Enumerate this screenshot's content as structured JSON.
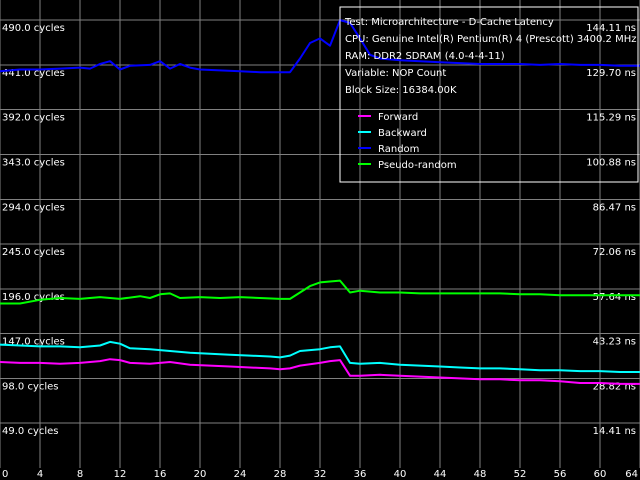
{
  "chart_data": {
    "type": "line",
    "x_ticks": [
      0,
      4,
      8,
      12,
      16,
      20,
      24,
      28,
      32,
      36,
      40,
      44,
      48,
      52,
      56,
      60,
      64
    ],
    "xlim": [
      0,
      64
    ],
    "ylim": [
      0,
      512
    ],
    "left_ticks": [
      {
        "value": 490,
        "label": "490.0 cycles"
      },
      {
        "value": 441,
        "label": "441.0 cycles"
      },
      {
        "value": 392,
        "label": "392.0 cycles"
      },
      {
        "value": 343,
        "label": "343.0 cycles"
      },
      {
        "value": 294,
        "label": "294.0 cycles"
      },
      {
        "value": 245,
        "label": "245.0 cycles"
      },
      {
        "value": 196,
        "label": "196.0 cycles"
      },
      {
        "value": 147,
        "label": "147.0 cycles"
      },
      {
        "value": 98,
        "label": "98.0 cycles"
      },
      {
        "value": 49,
        "label": "49.0 cycles"
      }
    ],
    "right_ticks": [
      {
        "value": 490,
        "label": "144.11 ns"
      },
      {
        "value": 441,
        "label": "129.70 ns"
      },
      {
        "value": 392,
        "label": "115.29 ns"
      },
      {
        "value": 343,
        "label": "100.88 ns"
      },
      {
        "value": 294,
        "label": "86.47 ns"
      },
      {
        "value": 245,
        "label": "72.06 ns"
      },
      {
        "value": 196,
        "label": "57.64 ns"
      },
      {
        "value": 147,
        "label": "43.23 ns"
      },
      {
        "value": 98,
        "label": "28.82 ns"
      },
      {
        "value": 49,
        "label": "14.41 ns"
      }
    ],
    "grid": true,
    "info": [
      "Test: Microarchitecture - D-Cache Latency",
      "CPU: Genuine Intel(R) Pentium(R) 4 (Prescott) 3400.2 MHz",
      "RAM: DDR2 SDRAM (4.0-4-4-11)",
      "Variable: NOP Count",
      "Block Size: 16384.00K"
    ],
    "legend_position": "top-right",
    "series": [
      {
        "name": "Forward",
        "color": "#ff00ff",
        "points": [
          [
            0,
            116
          ],
          [
            2,
            115
          ],
          [
            4,
            115
          ],
          [
            6,
            114
          ],
          [
            8,
            115
          ],
          [
            10,
            117
          ],
          [
            11,
            119
          ],
          [
            12,
            118
          ],
          [
            13,
            115
          ],
          [
            15,
            114
          ],
          [
            17,
            116
          ],
          [
            19,
            113
          ],
          [
            21,
            112
          ],
          [
            23,
            111
          ],
          [
            25,
            110
          ],
          [
            27,
            109
          ],
          [
            28,
            108
          ],
          [
            29,
            109
          ],
          [
            30,
            112
          ],
          [
            32,
            115
          ],
          [
            33,
            117
          ],
          [
            34,
            118
          ],
          [
            35,
            101
          ],
          [
            36,
            101
          ],
          [
            38,
            102
          ],
          [
            40,
            101
          ],
          [
            42,
            100
          ],
          [
            44,
            99
          ],
          [
            46,
            98
          ],
          [
            48,
            97
          ],
          [
            50,
            97
          ],
          [
            52,
            96
          ],
          [
            54,
            96
          ],
          [
            56,
            95
          ],
          [
            58,
            93
          ],
          [
            60,
            93
          ],
          [
            62,
            92
          ],
          [
            64,
            92
          ]
        ]
      },
      {
        "name": "Backward",
        "color": "#00ffff",
        "points": [
          [
            0,
            135
          ],
          [
            2,
            134
          ],
          [
            4,
            133
          ],
          [
            6,
            133
          ],
          [
            8,
            132
          ],
          [
            10,
            134
          ],
          [
            11,
            138
          ],
          [
            12,
            136
          ],
          [
            13,
            131
          ],
          [
            15,
            130
          ],
          [
            17,
            128
          ],
          [
            19,
            126
          ],
          [
            21,
            125
          ],
          [
            23,
            124
          ],
          [
            25,
            123
          ],
          [
            27,
            122
          ],
          [
            28,
            121
          ],
          [
            29,
            123
          ],
          [
            30,
            128
          ],
          [
            32,
            130
          ],
          [
            33,
            132
          ],
          [
            34,
            133
          ],
          [
            35,
            115
          ],
          [
            36,
            114
          ],
          [
            38,
            115
          ],
          [
            40,
            113
          ],
          [
            42,
            112
          ],
          [
            44,
            111
          ],
          [
            46,
            110
          ],
          [
            48,
            109
          ],
          [
            50,
            109
          ],
          [
            52,
            108
          ],
          [
            54,
            107
          ],
          [
            56,
            107
          ],
          [
            58,
            106
          ],
          [
            60,
            106
          ],
          [
            62,
            105
          ],
          [
            64,
            105
          ]
        ]
      },
      {
        "name": "Random",
        "color": "#0000ff",
        "points": [
          [
            0,
            434
          ],
          [
            2,
            436
          ],
          [
            4,
            436
          ],
          [
            6,
            437
          ],
          [
            8,
            438
          ],
          [
            9,
            437
          ],
          [
            10,
            442
          ],
          [
            11,
            445
          ],
          [
            12,
            436
          ],
          [
            13,
            440
          ],
          [
            15,
            441
          ],
          [
            16,
            445
          ],
          [
            17,
            437
          ],
          [
            18,
            442
          ],
          [
            19,
            438
          ],
          [
            20,
            436
          ],
          [
            22,
            435
          ],
          [
            24,
            434
          ],
          [
            26,
            433
          ],
          [
            28,
            433
          ],
          [
            29,
            433
          ],
          [
            30,
            448
          ],
          [
            31,
            465
          ],
          [
            32,
            470
          ],
          [
            33,
            462
          ],
          [
            34,
            490
          ],
          [
            35,
            487
          ],
          [
            36,
            470
          ],
          [
            37,
            452
          ],
          [
            38,
            448
          ],
          [
            40,
            446
          ],
          [
            42,
            445
          ],
          [
            44,
            444
          ],
          [
            46,
            443
          ],
          [
            48,
            442
          ],
          [
            50,
            442
          ],
          [
            52,
            442
          ],
          [
            54,
            441
          ],
          [
            56,
            442
          ],
          [
            58,
            441
          ],
          [
            60,
            441
          ],
          [
            62,
            440
          ],
          [
            64,
            440
          ]
        ]
      },
      {
        "name": "Pseudo-random",
        "color": "#00ff00",
        "points": [
          [
            0,
            180
          ],
          [
            2,
            180
          ],
          [
            4,
            184
          ],
          [
            6,
            186
          ],
          [
            8,
            185
          ],
          [
            10,
            187
          ],
          [
            12,
            185
          ],
          [
            14,
            188
          ],
          [
            15,
            186
          ],
          [
            16,
            190
          ],
          [
            17,
            191
          ],
          [
            18,
            186
          ],
          [
            20,
            187
          ],
          [
            22,
            186
          ],
          [
            24,
            187
          ],
          [
            26,
            186
          ],
          [
            28,
            185
          ],
          [
            29,
            185
          ],
          [
            30,
            192
          ],
          [
            31,
            199
          ],
          [
            32,
            203
          ],
          [
            33,
            204
          ],
          [
            34,
            205
          ],
          [
            35,
            192
          ],
          [
            36,
            194
          ],
          [
            38,
            192
          ],
          [
            40,
            192
          ],
          [
            42,
            191
          ],
          [
            44,
            191
          ],
          [
            46,
            191
          ],
          [
            48,
            191
          ],
          [
            50,
            191
          ],
          [
            52,
            190
          ],
          [
            54,
            190
          ],
          [
            56,
            189
          ],
          [
            58,
            189
          ],
          [
            60,
            189
          ],
          [
            62,
            189
          ],
          [
            64,
            189
          ]
        ]
      }
    ]
  }
}
